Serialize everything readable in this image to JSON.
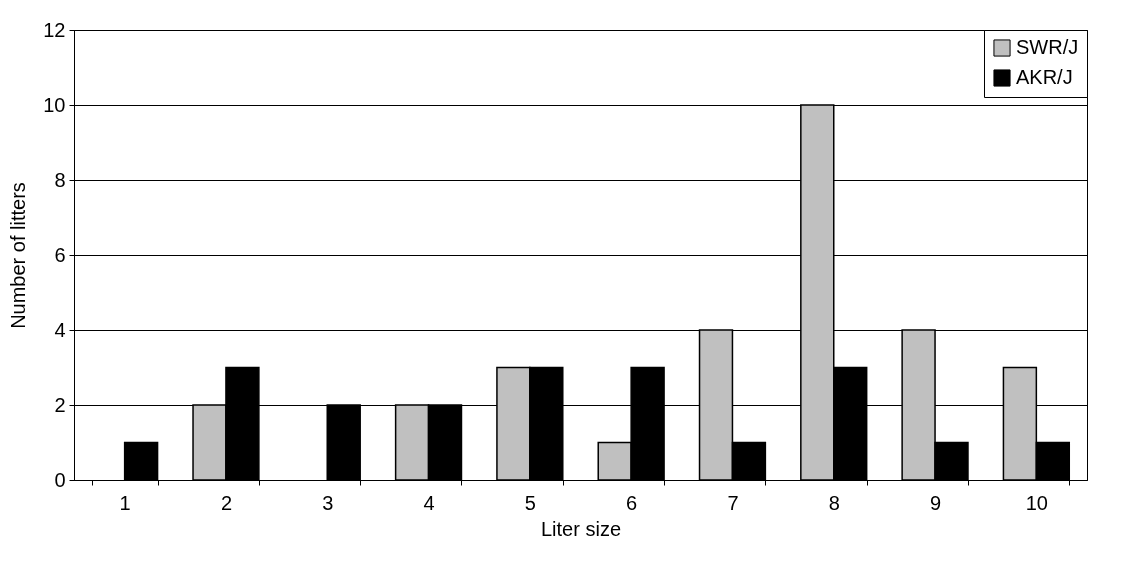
{
  "chart_data": {
    "type": "bar",
    "xlabel": "Liter size",
    "ylabel": "Number of litters",
    "categories": [
      "1",
      "2",
      "3",
      "4",
      "5",
      "6",
      "7",
      "8",
      "9",
      "10"
    ],
    "series": [
      {
        "name": "SWR/J",
        "color": "#c0c0c0",
        "values": [
          0,
          2,
          0,
          2,
          3,
          1,
          4,
          10,
          4,
          3
        ]
      },
      {
        "name": "AKR/J",
        "color": "#000000",
        "values": [
          1,
          3,
          2,
          2,
          3,
          3,
          1,
          3,
          1,
          1
        ]
      }
    ],
    "ylim": [
      0,
      12
    ],
    "yticks": [
      0,
      2,
      4,
      6,
      8,
      10,
      12
    ],
    "grid": "y",
    "legend": "top right"
  }
}
